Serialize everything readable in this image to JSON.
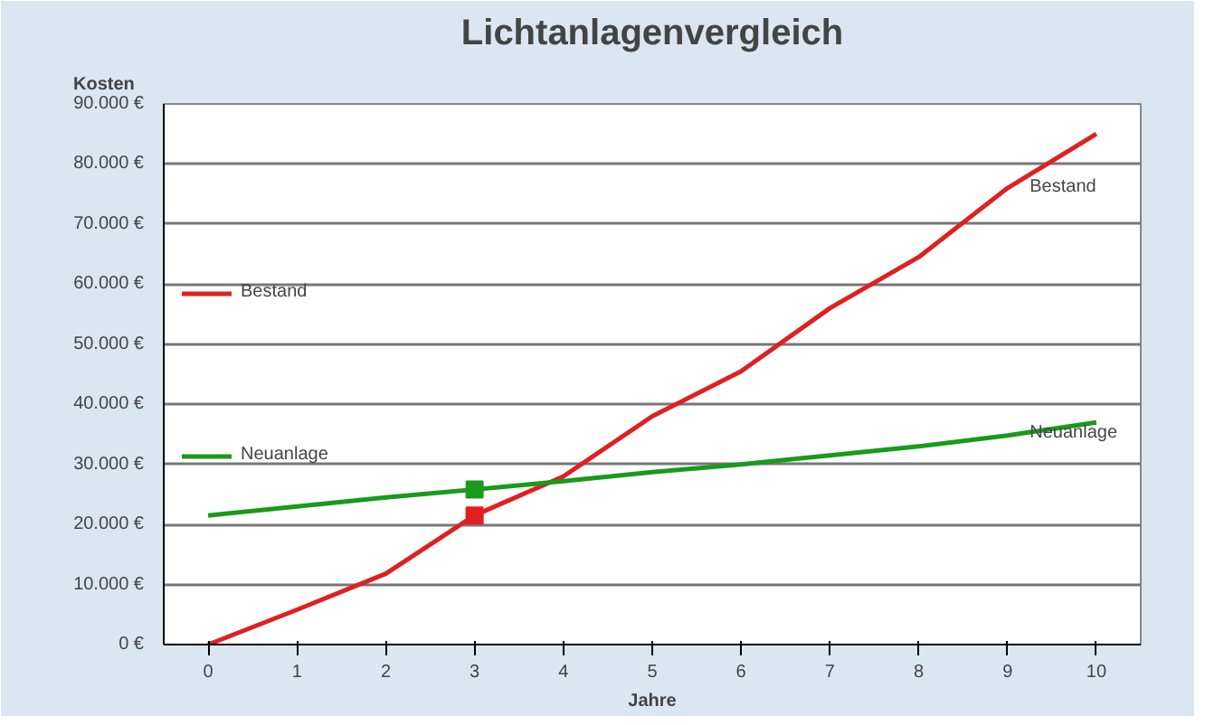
{
  "chart_data": {
    "type": "line",
    "title": "Lichtanlagenvergleich",
    "xlabel": "Jahre",
    "ylabel": "Kosten",
    "x": [
      0,
      1,
      2,
      3,
      4,
      5,
      6,
      7,
      8,
      9,
      10
    ],
    "series": [
      {
        "name": "Bestand",
        "color": "#e02020",
        "values": [
          0,
          5800,
          11800,
          21500,
          28000,
          38000,
          45500,
          56000,
          64500,
          76000,
          85000
        ],
        "marker": "none"
      },
      {
        "name": "Neuanlage",
        "color": "#1a9a1a",
        "values": [
          21500,
          23000,
          24500,
          25800,
          27200,
          28700,
          30000,
          31500,
          33000,
          34800,
          37000
        ],
        "marker": "none"
      },
      {
        "type": "scatter",
        "color": "#e02020",
        "x": [
          3
        ],
        "values": [
          21500
        ]
      },
      {
        "type": "scatter",
        "color": "#1a9a1a",
        "x": [
          3
        ],
        "values": [
          25800
        ]
      }
    ],
    "annotations": [
      {
        "text": "Bestand",
        "x": 9.25,
        "y": 76000
      },
      {
        "text": "Neuanlage",
        "x": 9.25,
        "y": 35000
      }
    ],
    "xlim": [
      -0.5,
      10.5
    ],
    "ylim": [
      0,
      90000
    ],
    "xticks": [
      0,
      1,
      2,
      3,
      4,
      5,
      6,
      7,
      8,
      9,
      10
    ],
    "yticks": [
      {
        "value": 0,
        "label": "0 €"
      },
      {
        "value": 10000,
        "label": "10.000 €"
      },
      {
        "value": 20000,
        "label": "20.000 €"
      },
      {
        "value": 30000,
        "label": "30.000 €"
      },
      {
        "value": 40000,
        "label": "40.000 €"
      },
      {
        "value": 50000,
        "label": "50.000 €"
      },
      {
        "value": 60000,
        "label": "60.000 €"
      },
      {
        "value": 70000,
        "label": "70.000 €"
      },
      {
        "value": 80000,
        "label": "80.000 €"
      },
      {
        "value": 90000,
        "label": "90.000 €"
      }
    ],
    "grid": "y",
    "legend": "left",
    "marker": "square"
  }
}
